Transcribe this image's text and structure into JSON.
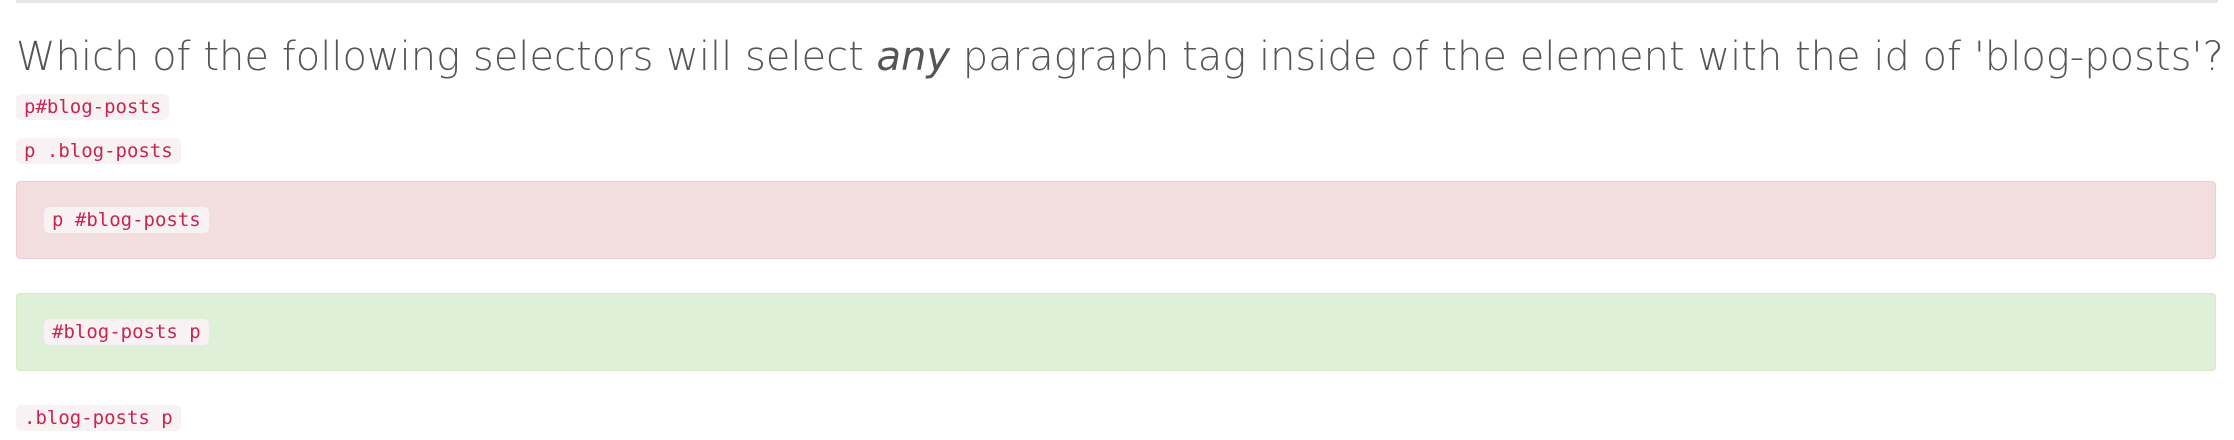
{
  "question": {
    "before": "Which of the following selectors will select ",
    "emphasis": "any",
    "after": " paragraph tag inside of the element with the id of 'blog-posts'?"
  },
  "options": [
    {
      "code": "p#blog-posts",
      "state": "neutral"
    },
    {
      "code": "p .blog-posts",
      "state": "neutral"
    },
    {
      "code": "p #blog-posts",
      "state": "incorrect"
    },
    {
      "code": "#blog-posts p",
      "state": "correct"
    },
    {
      "code": ".blog-posts p",
      "state": "neutral"
    }
  ],
  "colors": {
    "code_text": "#c7254e",
    "code_background": "#f9f2f4",
    "incorrect_background": "#f2dede",
    "correct_background": "#dff0d8",
    "question_text": "#555555"
  }
}
